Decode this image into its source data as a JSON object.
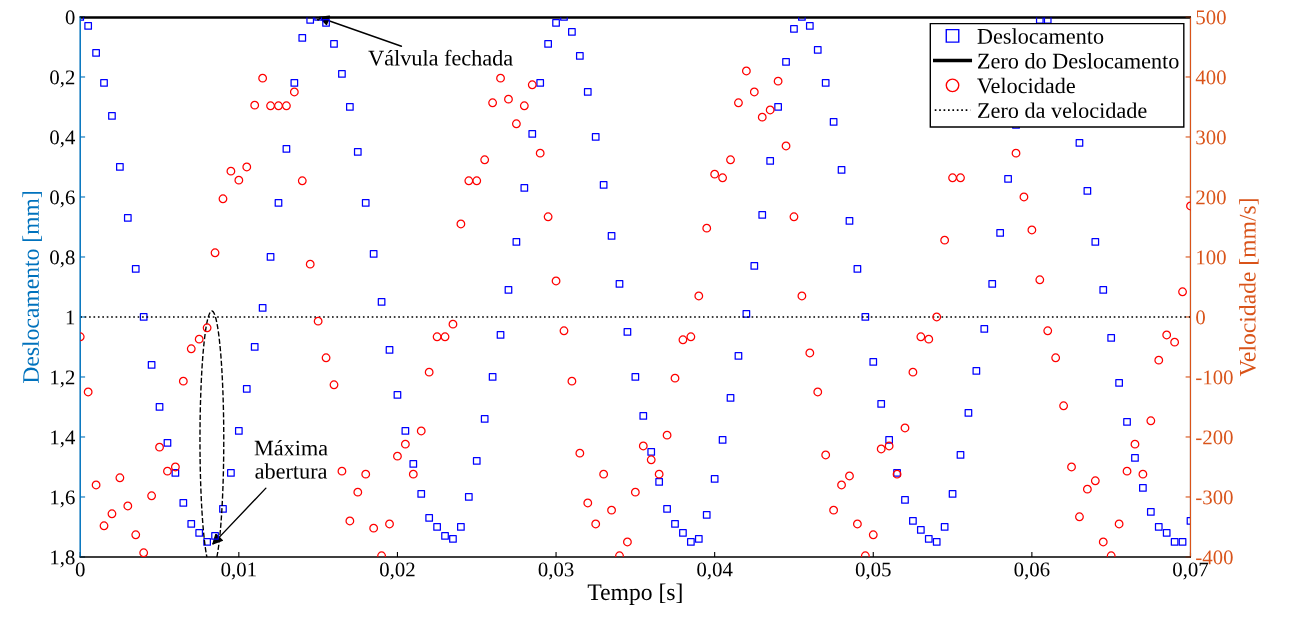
{
  "chart_data": {
    "type": "scatter",
    "xlabel": "Tempo [s]",
    "ylabel": "Deslocamento [mm]",
    "y2label": "Velocidade [mm/s]",
    "x": [
      0,
      0.0005,
      0.001,
      0.0015,
      0.002,
      0.0025,
      0.003,
      0.0035,
      0.004,
      0.0045,
      0.005,
      0.0055,
      0.006,
      0.0065,
      0.007,
      0.0075,
      0.008,
      0.0085,
      0.009,
      0.0095,
      0.01,
      0.0105,
      0.011,
      0.0115,
      0.012,
      0.0125,
      0.013,
      0.0135,
      0.014,
      0.0145,
      0.015,
      0.0155,
      0.016,
      0.0165,
      0.017,
      0.0175,
      0.018,
      0.0185,
      0.019,
      0.0195,
      0.02,
      0.0205,
      0.021,
      0.0215,
      0.022,
      0.0225,
      0.023,
      0.0235,
      0.024,
      0.0245,
      0.025,
      0.0255,
      0.026,
      0.0265,
      0.027,
      0.0275,
      0.028,
      0.0285,
      0.029,
      0.0295,
      0.03,
      0.0305,
      0.031,
      0.0315,
      0.032,
      0.0325,
      0.033,
      0.0335,
      0.034,
      0.0345,
      0.035,
      0.0355,
      0.036,
      0.0365,
      0.037,
      0.0375,
      0.038,
      0.0385,
      0.039,
      0.0395,
      0.04,
      0.0405,
      0.041,
      0.0415,
      0.042,
      0.0425,
      0.043,
      0.0435,
      0.044,
      0.0445,
      0.045,
      0.0455,
      0.046,
      0.0465,
      0.047,
      0.0475,
      0.048,
      0.0485,
      0.049,
      0.0495,
      0.05,
      0.0505,
      0.051,
      0.0515,
      0.052,
      0.0525,
      0.053,
      0.0535,
      0.054,
      0.0545,
      0.055,
      0.0555,
      0.056,
      0.0565,
      0.057,
      0.0575,
      0.058,
      0.0585,
      0.059,
      0.0595,
      0.06,
      0.0605,
      0.061,
      0.0615,
      0.062,
      0.0625,
      0.063,
      0.0635,
      0.064,
      0.0645,
      0.065,
      0.0655,
      0.066,
      0.0665,
      0.067,
      0.0675,
      0.068,
      0.0685,
      0.069,
      0.0695,
      0.07
    ],
    "series": [
      {
        "name": "Deslocamento",
        "marker": "square",
        "color": "#0000ff",
        "values": [
          0,
          0.03,
          0.12,
          0.22,
          0.33,
          0.5,
          0.67,
          0.84,
          1.0,
          1.16,
          1.3,
          1.42,
          1.52,
          1.62,
          1.69,
          1.72,
          1.75,
          1.73,
          1.64,
          1.52,
          1.38,
          1.24,
          1.1,
          0.97,
          0.8,
          0.62,
          0.44,
          0.22,
          0.07,
          0.01,
          0,
          0.02,
          0.09,
          0.19,
          0.3,
          0.45,
          0.62,
          0.79,
          0.95,
          1.11,
          1.26,
          1.38,
          1.49,
          1.59,
          1.67,
          1.7,
          1.73,
          1.74,
          1.7,
          1.6,
          1.48,
          1.34,
          1.2,
          1.06,
          0.91,
          0.75,
          0.57,
          0.39,
          0.22,
          0.09,
          0.02,
          0,
          0.05,
          0.13,
          0.25,
          0.4,
          0.56,
          0.73,
          0.89,
          1.05,
          1.2,
          1.33,
          1.45,
          1.55,
          1.64,
          1.69,
          1.72,
          1.75,
          1.74,
          1.66,
          1.54,
          1.41,
          1.27,
          1.13,
          0.99,
          0.83,
          0.66,
          0.48,
          0.3,
          0.15,
          0.04,
          0,
          0.03,
          0.11,
          0.22,
          0.35,
          0.51,
          0.68,
          0.84,
          1.0,
          1.15,
          1.29,
          1.41,
          1.52,
          1.61,
          1.68,
          1.71,
          1.74,
          1.75,
          1.7,
          1.59,
          1.46,
          1.32,
          1.18,
          1.04,
          0.89,
          0.72,
          0.54,
          0.36,
          null,
          null,
          0.01,
          0.01,
          null,
          null,
          null,
          0.42,
          0.58,
          0.75,
          0.91,
          1.07,
          1.22,
          1.35,
          1.47,
          1.57,
          1.65,
          1.7,
          1.72,
          1.75,
          1.75,
          1.68
        ]
      },
      {
        "name": "Velocidade",
        "marker": "circle",
        "axis": "y2",
        "color": "#ff0000",
        "values": [
          -33,
          -125,
          -280,
          -348,
          -328,
          -268,
          -315,
          -363,
          -393,
          -298,
          -217,
          -257,
          -250,
          -107,
          -53,
          -37,
          -18,
          107,
          197,
          243,
          228,
          250,
          353,
          398,
          352,
          352,
          352,
          375,
          227,
          88,
          -7,
          -68,
          -113,
          -257,
          -340,
          -292,
          -262,
          -352,
          -398,
          -345,
          -232,
          -212,
          -262,
          -190,
          -92,
          -33,
          -33,
          -12,
          155,
          227,
          227,
          262,
          357,
          398,
          363,
          322,
          352,
          387,
          273,
          167,
          60,
          -23,
          -107,
          -227,
          -310,
          -345,
          -262,
          -322,
          -398,
          -375,
          -292,
          -215,
          -238,
          -262,
          -197,
          -102,
          -38,
          -33,
          35,
          148,
          238,
          232,
          262,
          357,
          410,
          375,
          333,
          345,
          393,
          285,
          167,
          35,
          -60,
          -125,
          -230,
          -322,
          -280,
          -265,
          -345,
          -398,
          -363,
          -220,
          -215,
          -262,
          -185,
          -92,
          -33,
          -37,
          0,
          128,
          232,
          232,
          null,
          null,
          null,
          null,
          null,
          null,
          273,
          200,
          145,
          62,
          -23,
          -68,
          -148,
          -250,
          -333,
          -287,
          -273,
          -375,
          -398,
          -345,
          -257,
          -212,
          -262,
          -173,
          -72,
          -30,
          -42,
          42,
          185
        ]
      }
    ],
    "ref_lines": [
      {
        "axis": "y",
        "value": 0,
        "label": "Zero do Deslocamento",
        "color": "#000000",
        "line_style": "solid"
      },
      {
        "axis": "y2",
        "value": 0,
        "label": "Zero da velocidade",
        "color": "#000000",
        "line_style": "dotted"
      }
    ],
    "xlim": [
      0,
      0.07
    ],
    "xticks": [
      0,
      {
        "value": 0.01,
        "label": "0,01"
      },
      {
        "value": 0.02,
        "label": "0,02"
      },
      {
        "value": 0.03,
        "label": "0,03"
      },
      {
        "value": 0.04,
        "label": "0,04"
      },
      {
        "value": 0.05,
        "label": "0,05"
      },
      {
        "value": 0.06,
        "label": "0,06"
      },
      {
        "value": 0.07,
        "label": "0,07"
      }
    ],
    "ylim": [
      1.8,
      0
    ],
    "yticks": [
      0,
      {
        "value": 0.2,
        "label": "0,2"
      },
      {
        "value": 0.4,
        "label": "0,4"
      },
      {
        "value": 0.6,
        "label": "0,6"
      },
      {
        "value": 0.8,
        "label": "0,8"
      },
      1,
      {
        "value": 1.2,
        "label": "1,2"
      },
      {
        "value": 1.4,
        "label": "1,4"
      },
      {
        "value": 1.6,
        "label": "1,6"
      },
      {
        "value": 1.8,
        "label": "1,8"
      }
    ],
    "y2lim": [
      -400,
      500
    ],
    "y2ticks": [
      -400,
      -300,
      -200,
      -100,
      0,
      100,
      200,
      300,
      400,
      500
    ],
    "annotations": [
      {
        "text": "Válvula fechada",
        "x": 0.015,
        "y": 0
      },
      {
        "text": "Máxima\nabertura",
        "x": 0.0083,
        "y": 1.76
      }
    ],
    "legend": "top right",
    "grid": false
  }
}
